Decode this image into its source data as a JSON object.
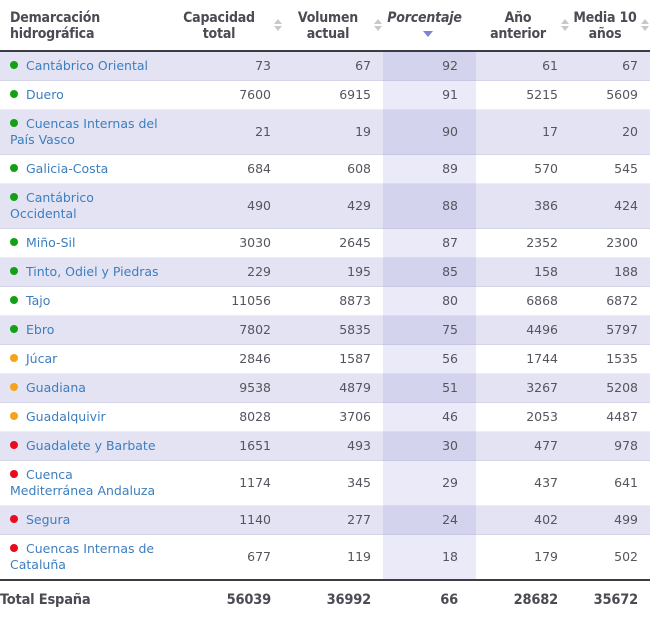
{
  "colors": {
    "green": "#14a014",
    "orange": "#f6a21a",
    "red": "#e80c1e",
    "link": "#3d7ebd",
    "row_alt_bg": "#e3e3f4",
    "pct_col_on_alt": "#d3d3ed",
    "pct_col_on_white": "#eaeaf8",
    "sort_active": "#8181d1",
    "sort_inactive": "#c9c9cd",
    "header_text": "#4b4b54",
    "body_text": "#55555e"
  },
  "chart_data": {
    "type": "table",
    "columns": [
      {
        "label": "Demarcación hidrográfica",
        "align": "left",
        "sortable": false,
        "sort": "none"
      },
      {
        "label": "Capacidad total",
        "align": "center",
        "sortable": true,
        "sort": "none"
      },
      {
        "label": "Volumen actual",
        "align": "center",
        "sortable": true,
        "sort": "none"
      },
      {
        "label": "Porcentaje",
        "align": "center",
        "sortable": true,
        "sort": "desc"
      },
      {
        "label": "Año anterior",
        "align": "center",
        "sortable": true,
        "sort": "none"
      },
      {
        "label": "Media 10 años",
        "align": "center",
        "sortable": true,
        "sort": "none"
      }
    ],
    "rows": [
      {
        "name": "Cantábrico Oriental",
        "status": "green",
        "values": [
          73,
          67,
          92,
          61,
          67
        ]
      },
      {
        "name": "Duero",
        "status": "green",
        "values": [
          7600,
          6915,
          91,
          5215,
          5609
        ]
      },
      {
        "name": "Cuencas Internas del País Vasco",
        "status": "green",
        "values": [
          21,
          19,
          90,
          17,
          20
        ]
      },
      {
        "name": "Galicia-Costa",
        "status": "green",
        "values": [
          684,
          608,
          89,
          570,
          545
        ]
      },
      {
        "name": "Cantábrico Occidental",
        "status": "green",
        "values": [
          490,
          429,
          88,
          386,
          424
        ]
      },
      {
        "name": "Miño-Sil",
        "status": "green",
        "values": [
          3030,
          2645,
          87,
          2352,
          2300
        ]
      },
      {
        "name": "Tinto, Odiel y Piedras",
        "status": "green",
        "values": [
          229,
          195,
          85,
          158,
          188
        ]
      },
      {
        "name": "Tajo",
        "status": "green",
        "values": [
          11056,
          8873,
          80,
          6868,
          6872
        ]
      },
      {
        "name": "Ebro",
        "status": "green",
        "values": [
          7802,
          5835,
          75,
          4496,
          5797
        ]
      },
      {
        "name": "Júcar",
        "status": "orange",
        "values": [
          2846,
          1587,
          56,
          1744,
          1535
        ]
      },
      {
        "name": "Guadiana",
        "status": "orange",
        "values": [
          9538,
          4879,
          51,
          3267,
          5208
        ]
      },
      {
        "name": "Guadalquivir",
        "status": "orange",
        "values": [
          8028,
          3706,
          46,
          2053,
          4487
        ]
      },
      {
        "name": "Guadalete y Barbate",
        "status": "red",
        "values": [
          1651,
          493,
          30,
          477,
          978
        ]
      },
      {
        "name": "Cuenca Mediterránea Andaluza",
        "status": "red",
        "values": [
          1174,
          345,
          29,
          437,
          641
        ]
      },
      {
        "name": "Segura",
        "status": "red",
        "values": [
          1140,
          277,
          24,
          402,
          499
        ]
      },
      {
        "name": "Cuencas Internas de Cataluña",
        "status": "red",
        "values": [
          677,
          119,
          18,
          179,
          502
        ]
      }
    ],
    "footer": {
      "label": "Total España",
      "values": [
        56039,
        36992,
        66,
        28682,
        35672
      ]
    }
  }
}
